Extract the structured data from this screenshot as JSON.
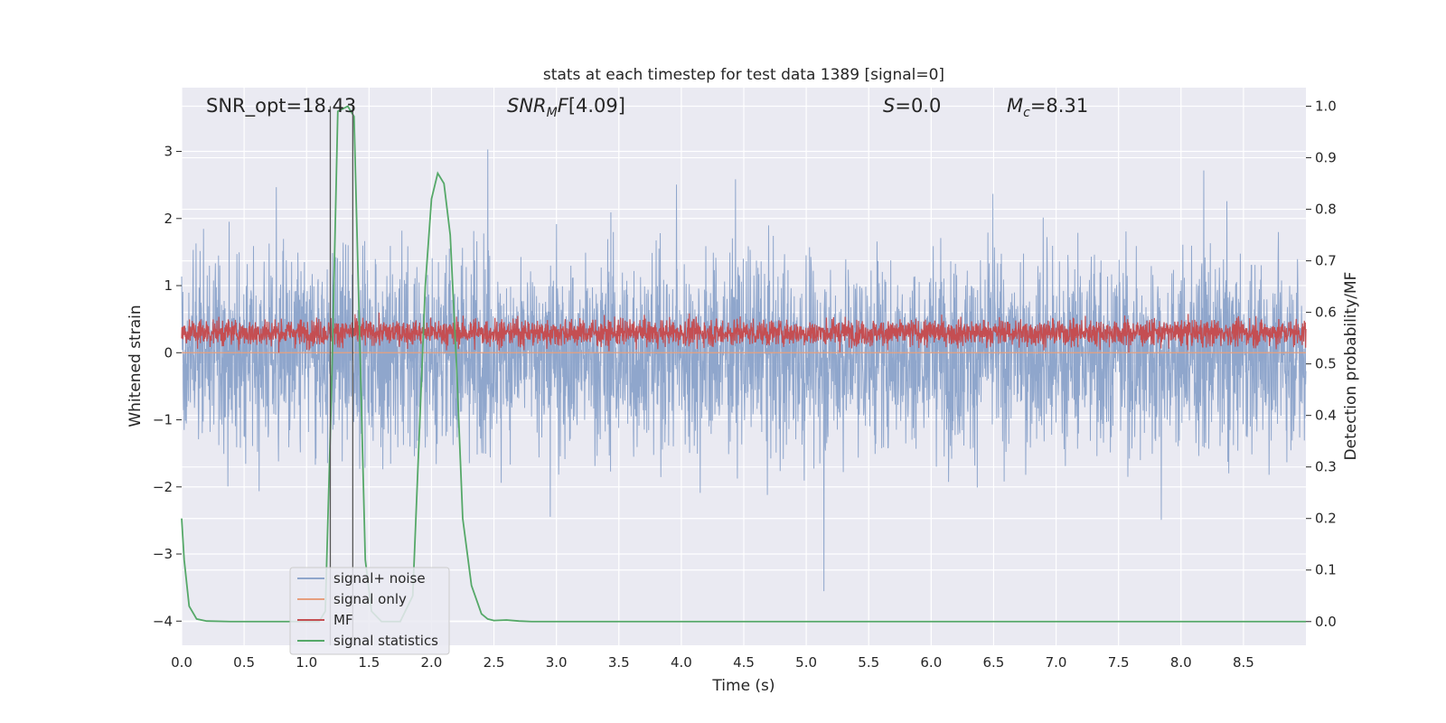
{
  "chart_data": {
    "type": "line",
    "title": "stats at each timestep for test data 1389 [signal=0]",
    "xlabel": "Time (s)",
    "ylabel": "Whitened strain",
    "y2label": "Detection probability/MF",
    "xlim": [
      0,
      9.0
    ],
    "ylim": [
      -4.36,
      3.95
    ],
    "y2lim": [
      -0.046,
      1.036
    ],
    "x_ticks": [
      "0.0",
      "0.5",
      "1.0",
      "1.5",
      "2.0",
      "2.5",
      "3.0",
      "3.5",
      "4.0",
      "4.5",
      "5.0",
      "5.5",
      "6.0",
      "6.5",
      "7.0",
      "7.5",
      "8.0",
      "8.5"
    ],
    "y_ticks": [
      "3",
      "2",
      "1",
      "0",
      "−1",
      "−2",
      "−3",
      "−4"
    ],
    "y2_ticks": [
      "1.0",
      "0.9",
      "0.8",
      "0.7",
      "0.6",
      "0.5",
      "0.4",
      "0.3",
      "0.2",
      "0.1",
      "0.0"
    ],
    "grid": true,
    "legend_position": "lower-left",
    "annotations": {
      "snr_opt": "SNR_opt=18.43",
      "snr_mf": "[4.09]",
      "s": "=0.0",
      "mc": "=8.31"
    },
    "vlines": [
      1.19,
      1.37
    ],
    "series": [
      {
        "name": "signal+ noise",
        "color": "#8fa6cc",
        "axis": "left",
        "kind": "noise",
        "amplitude": 3.6
      },
      {
        "name": "signal only",
        "color": "#e69f7e",
        "axis": "left",
        "values": [
          0,
          0
        ]
      },
      {
        "name": "MF",
        "color": "#c44e52",
        "axis": "left",
        "kind": "noise",
        "center": 0.3,
        "amplitude": 0.55
      },
      {
        "name": "signal statistics",
        "color": "#55a868",
        "axis": "right",
        "x": [
          0.0,
          0.02,
          0.06,
          0.12,
          0.2,
          0.4,
          0.6,
          0.8,
          1.0,
          1.1,
          1.15,
          1.2,
          1.25,
          1.33,
          1.38,
          1.42,
          1.47,
          1.52,
          1.6,
          1.75,
          1.85,
          1.9,
          1.95,
          2.0,
          2.05,
          2.1,
          2.15,
          2.2,
          2.25,
          2.32,
          2.4,
          2.45,
          2.5,
          2.6,
          2.7,
          2.8,
          3.0,
          4.0,
          5.0,
          6.0,
          7.0,
          8.0,
          9.0
        ],
        "values": [
          0.2,
          0.12,
          0.03,
          0.005,
          0.001,
          0.0,
          0.0,
          0.0,
          0.0,
          0.0,
          0.02,
          0.45,
          0.99,
          1.0,
          0.98,
          0.6,
          0.12,
          0.02,
          0.0,
          0.0,
          0.05,
          0.35,
          0.65,
          0.82,
          0.87,
          0.85,
          0.75,
          0.5,
          0.2,
          0.07,
          0.015,
          0.005,
          0.002,
          0.003,
          0.001,
          0.0,
          0.0,
          0.0,
          0.0,
          0.0,
          0.0,
          0.0,
          0.0
        ]
      }
    ]
  }
}
